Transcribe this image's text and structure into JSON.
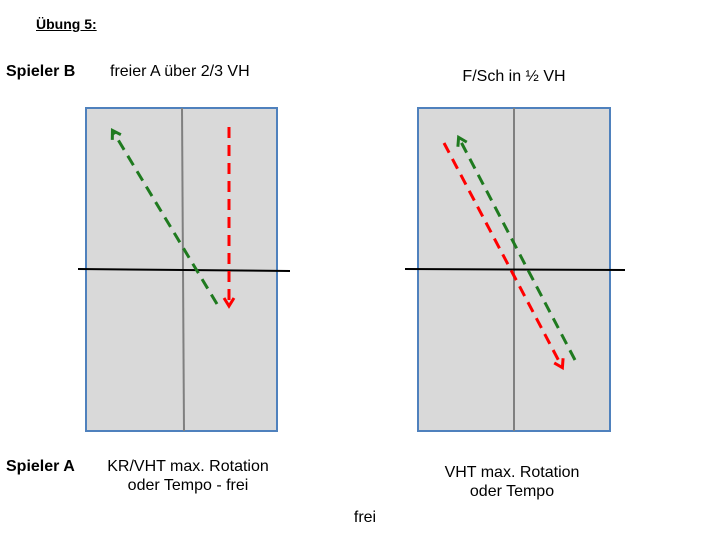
{
  "title": "Übung 5:",
  "player_b": {
    "label": "Spieler B",
    "left_table_text": "freier A über 2/3 VH",
    "right_table_text": "F/Sch in ½ VH"
  },
  "player_a": {
    "label": "Spieler A",
    "left_table_text_line1": "KR/VHT max. Rotation",
    "left_table_text_line2": "oder Tempo - frei",
    "right_table_text_line1": "VHT max. Rotation",
    "right_table_text_line2": "oder Tempo"
  },
  "bottom_text": "frei",
  "colors": {
    "table_fill": "#d9d9d9",
    "table_border": "#4f81bd",
    "center_line": "#808080",
    "net": "#000000",
    "green_arrow": "#1f7a1f",
    "red_arrow": "#ff0000"
  }
}
